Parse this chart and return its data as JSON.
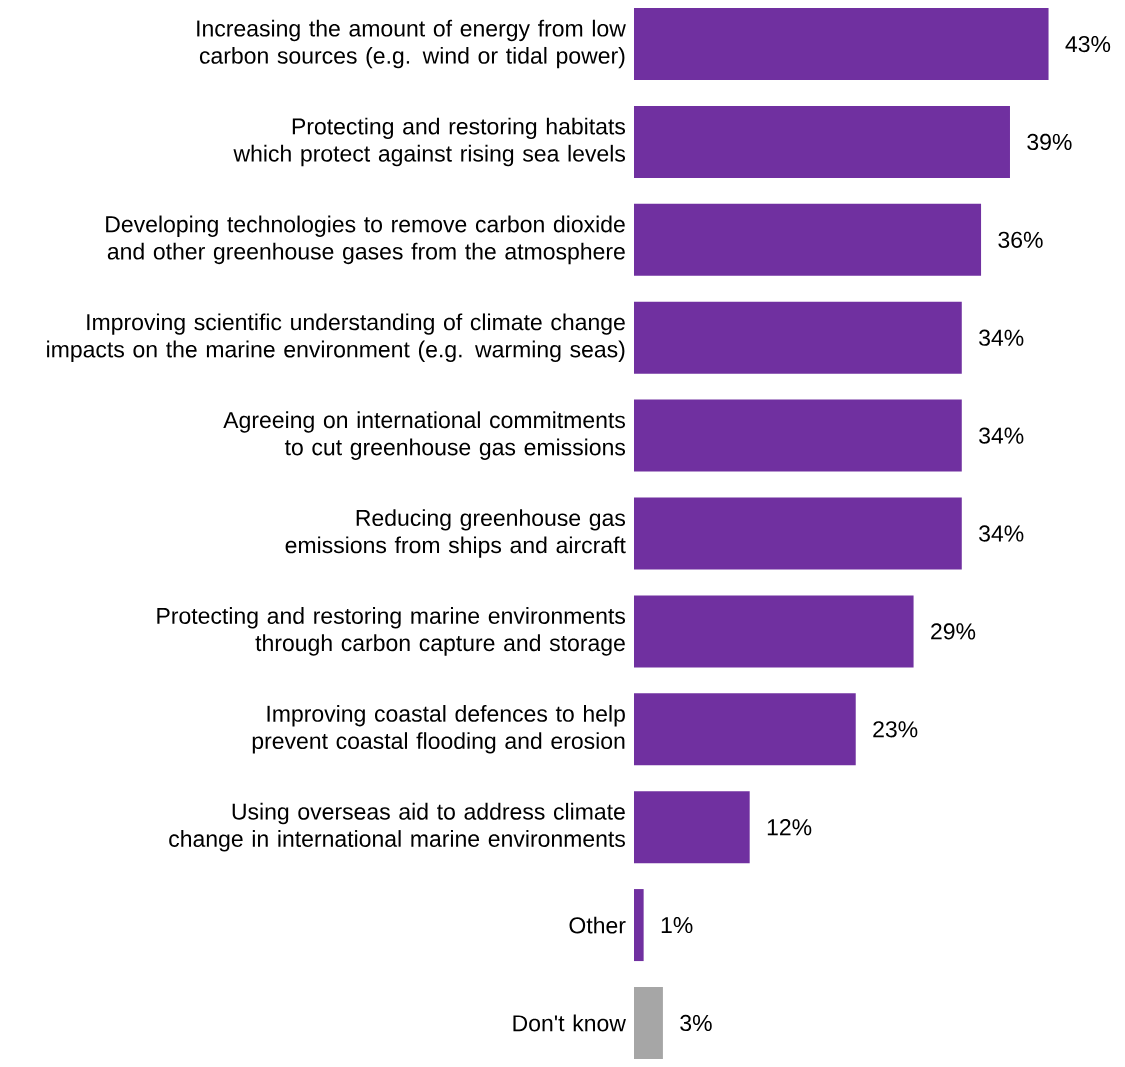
{
  "chart_data": {
    "type": "bar",
    "orientation": "horizontal",
    "tick_labels": "y",
    "categories": [
      "Increasing the amount of energy from low carbon sources (e.g. wind or tidal power)",
      "Protecting and restoring habitats which protect against rising sea levels",
      "Developing technologies to remove carbon dioxide and other greenhouse gases from the atmosphere",
      "Improving scientific understanding of climate change impacts on the marine environment (e.g. warming seas)",
      "Agreeing on international commitments to cut greenhouse gas emissions",
      "Reducing greenhouse gas emissions from ships and aircraft",
      "Protecting and restoring marine environments through carbon capture and storage",
      "Improving coastal defences to help prevent coastal flooding and erosion",
      "Using overseas aid to address climate change in international marine environments",
      "Other",
      "Don't know"
    ],
    "values": [
      43,
      39,
      36,
      34,
      34,
      34,
      29,
      23,
      12,
      1,
      3
    ],
    "value_labels": [
      "43%",
      "39%",
      "36%",
      "34%",
      "34%",
      "34%",
      "29%",
      "23%",
      "12%",
      "1%",
      "3%"
    ],
    "colors": [
      "#7030a0",
      "#7030a0",
      "#7030a0",
      "#7030a0",
      "#7030a0",
      "#7030a0",
      "#7030a0",
      "#7030a0",
      "#7030a0",
      "#7030a0",
      "#a6a6a6"
    ]
  }
}
